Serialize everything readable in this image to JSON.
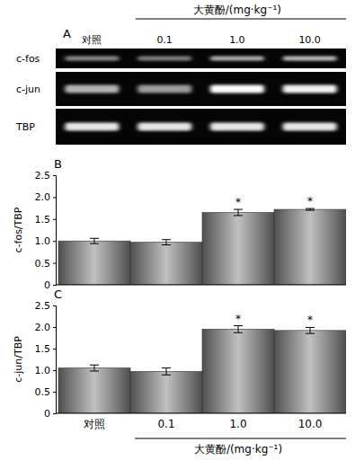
{
  "gel": {
    "label": "A",
    "header": "大黄酚/(mg·kg⁻¹)",
    "lanes": [
      "对照",
      "0.1",
      "1.0",
      "10.0"
    ],
    "rows": [
      {
        "name": "c-fos",
        "intensity": [
          0.55,
          0.5,
          0.7,
          0.75
        ]
      },
      {
        "name": "c-jun",
        "intensity": [
          0.7,
          0.6,
          1.0,
          0.95
        ]
      },
      {
        "name": "TBP",
        "intensity": [
          0.9,
          0.9,
          0.9,
          0.9
        ]
      }
    ]
  },
  "chart_data": [
    {
      "type": "bar",
      "title": "B",
      "y_label": "c-fos/TBP",
      "categories": [
        null,
        null,
        null,
        null
      ],
      "values": [
        1.0,
        0.97,
        1.65,
        1.72
      ],
      "errors": [
        0.06,
        0.06,
        0.07,
        0.02
      ],
      "significance": [
        null,
        null,
        "*",
        "*"
      ],
      "color": "#8c8c8c",
      "ylim": [
        0,
        2.5
      ],
      "yticks": [
        0,
        0.5,
        {
          "value": 1,
          "label": "1.0"
        },
        1.5,
        {
          "value": 2,
          "label": "2.0"
        },
        2.5
      ],
      "grid": false,
      "tick_labels": "y"
    },
    {
      "type": "bar",
      "title": "C",
      "y_label": "c-jun/TBP",
      "x_label": "大黄酚/(mg·kg⁻¹)",
      "categories": [
        "对照",
        "0.1",
        "1.0",
        "10.0"
      ],
      "values": [
        1.05,
        0.97,
        1.95,
        1.92
      ],
      "errors": [
        0.07,
        0.08,
        0.08,
        0.07
      ],
      "significance": [
        null,
        null,
        "*",
        "*"
      ],
      "color": "#8c8c8c",
      "ylim": [
        0,
        2.5
      ],
      "yticks": [
        0,
        0.5,
        {
          "value": 1,
          "label": "1.0"
        },
        1.5,
        {
          "value": 2,
          "label": "2.0"
        },
        2.5
      ],
      "grid": false,
      "tick_labels": true
    }
  ]
}
